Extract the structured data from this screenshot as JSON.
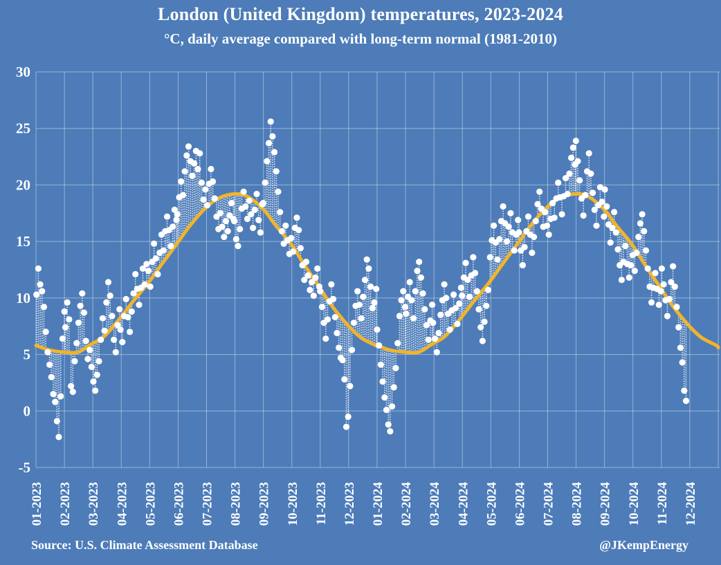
{
  "title": "London (United Kingdom) temperatures, 2023-2024",
  "subtitle": "°C, daily average compared with long-term normal (1981-2010)",
  "footer": {
    "source": "Source: U.S. Climate Assessment Database",
    "credit": "@JKempEnergy"
  },
  "colors": {
    "background": "#4d7cb8",
    "gridline": "#ffffff",
    "gridline_opacity": 0.42,
    "normal_line": "#f0b42c",
    "daily_dot": "#ffffff",
    "connector": "#ffffff",
    "text": "#ffffff"
  },
  "chart_data": {
    "type": "scatter",
    "title": "London (United Kingdom) temperatures, 2023-2024",
    "subtitle": "°C, daily average compared with long-term normal (1981-2010)",
    "xlabel": "",
    "ylabel": "°C",
    "ylim": [
      -5,
      30
    ],
    "yticks": [
      30,
      25,
      20,
      15,
      10,
      5,
      0,
      -5
    ],
    "grid": true,
    "legend": "none",
    "x_total_days": 731,
    "xticklabels": [
      "01-2023",
      "02-2023",
      "03-2023",
      "04-2023",
      "05-2023",
      "06-2023",
      "07-2023",
      "08-2023",
      "09-2023",
      "10-2023",
      "11-2023",
      "12-2023",
      "01-2024",
      "02-2024",
      "03-2024",
      "04-2024",
      "05-2024",
      "06-2024",
      "07-2024",
      "08-2024",
      "09-2024",
      "10-2024",
      "11-2024",
      "12-2024"
    ],
    "series": [
      {
        "name": "Daily average temperature",
        "marker": "white dot",
        "note": "each dot joined to normal curve by dotted line"
      },
      {
        "name": "Long-term normal 1981-2010",
        "style": "smooth yellow line"
      }
    ],
    "normal_anchors": {
      "doy": [
        1,
        15,
        32,
        46,
        60,
        74,
        91,
        105,
        121,
        135,
        152,
        166,
        182,
        196,
        213,
        227,
        244,
        258,
        274,
        288,
        305,
        319,
        335,
        349,
        365
      ],
      "value": [
        5.8,
        5.4,
        5.2,
        5.2,
        5.9,
        6.6,
        8.2,
        9.7,
        11.3,
        12.9,
        14.8,
        16.4,
        17.9,
        18.8,
        19.2,
        19.0,
        17.9,
        16.4,
        14.8,
        13.0,
        10.9,
        9.2,
        7.6,
        6.5,
        5.8
      ],
      "end_day": 731,
      "end_value": 5.6
    },
    "daily": {
      "note": "daily average temperatures sampled every 2 days, from 2023-01-01 to 2024-11-27",
      "months": [
        {
          "label": "01-2023",
          "start_day": 0,
          "step_days": 2,
          "temps": [
            10.3,
            12.6,
            11.2,
            10.6,
            9.2,
            7.0,
            5.2,
            4.1,
            3.0,
            1.5,
            0.8,
            -0.9,
            -2.3,
            1.3,
            6.4,
            8.8
          ]
        },
        {
          "label": "02-2023",
          "start_day": 31,
          "step_days": 2,
          "temps": [
            7.4,
            9.6,
            8.1,
            2.2,
            1.7,
            4.4,
            6.0,
            7.8,
            9.3,
            10.4,
            8.7,
            6.2,
            4.6,
            5.4
          ]
        },
        {
          "label": "03-2023",
          "start_day": 59,
          "step_days": 2,
          "temps": [
            3.9,
            2.6,
            1.8,
            3.2,
            4.4,
            6.3,
            8.2,
            7.1,
            9.6,
            11.4,
            10.2,
            8.4,
            6.3,
            5.2,
            7.6,
            9.0
          ]
        },
        {
          "label": "04-2023",
          "start_day": 90,
          "step_days": 2,
          "temps": [
            7.2,
            6.1,
            8.4,
            9.9,
            8.3,
            7.0,
            8.8,
            10.4,
            12.1,
            10.8,
            9.4,
            10.9,
            12.6,
            11.2,
            13.0
          ]
        },
        {
          "label": "05-2023",
          "start_day": 120,
          "step_days": 2,
          "temps": [
            12.4,
            11.0,
            13.2,
            14.8,
            13.5,
            12.1,
            14.0,
            15.6,
            14.2,
            15.9,
            17.2,
            16.0,
            14.6,
            16.3,
            17.8,
            16.9
          ]
        },
        {
          "label": "06-2023",
          "start_day": 151,
          "step_days": 2,
          "temps": [
            17.4,
            18.9,
            20.3,
            19.1,
            21.2,
            22.6,
            23.4,
            22.1,
            20.8,
            21.9,
            23.0,
            21.4,
            22.8,
            20.2,
            18.7
          ]
        },
        {
          "label": "07-2023",
          "start_day": 181,
          "step_days": 2,
          "temps": [
            19.6,
            18.2,
            20.1,
            21.4,
            20.3,
            18.8,
            17.2,
            16.1,
            17.5,
            16.3,
            15.4,
            16.8,
            15.9,
            17.3,
            18.4,
            17.0
          ]
        },
        {
          "label": "08-2023",
          "start_day": 212,
          "step_days": 2,
          "temps": [
            16.8,
            15.2,
            14.6,
            16.1,
            17.9,
            19.4,
            18.1,
            17.0,
            18.6,
            17.4,
            16.2,
            17.8,
            19.2,
            16.9,
            15.8,
            18.3
          ]
        },
        {
          "label": "09-2023",
          "start_day": 243,
          "step_days": 2,
          "temps": [
            18.4,
            20.2,
            22.1,
            23.7,
            25.6,
            24.3,
            22.9,
            21.2,
            19.4,
            17.6,
            15.9,
            14.8,
            16.4,
            15.1,
            13.9
          ]
        },
        {
          "label": "10-2023",
          "start_day": 273,
          "step_days": 2,
          "temps": [
            15.3,
            14.1,
            16.2,
            17.1,
            16.0,
            14.4,
            12.9,
            11.6,
            13.2,
            12.0,
            10.7,
            11.4,
            10.2,
            11.8,
            12.6,
            11.0
          ]
        },
        {
          "label": "11-2023",
          "start_day": 304,
          "step_days": 2,
          "temps": [
            10.6,
            9.2,
            7.8,
            6.4,
            8.1,
            9.7,
            11.2,
            9.9,
            8.3,
            6.9,
            5.6,
            4.7,
            4.5,
            2.8,
            -1.4
          ]
        },
        {
          "label": "12-2023",
          "start_day": 334,
          "step_days": 2,
          "temps": [
            -0.5,
            2.2,
            5.4,
            7.8,
            9.3,
            10.6,
            9.4,
            8.2,
            10.1,
            11.6,
            13.4,
            12.6,
            11.0,
            9.1,
            9.6,
            10.8
          ]
        },
        {
          "label": "01-2024",
          "start_day": 365,
          "step_days": 2,
          "temps": [
            7.2,
            5.8,
            4.1,
            2.6,
            1.2,
            0.1,
            -1.2,
            -1.8,
            0.4,
            2.1,
            3.8,
            6.0,
            8.4,
            9.8,
            10.6,
            9.2
          ]
        },
        {
          "label": "02-2024",
          "start_day": 396,
          "step_days": 2,
          "temps": [
            8.6,
            10.1,
            11.4,
            9.8,
            8.2,
            10.6,
            12.4,
            13.2,
            11.8,
            10.4,
            9.0,
            7.6,
            6.3,
            8.0,
            9.4
          ]
        },
        {
          "label": "03-2024",
          "start_day": 425,
          "step_days": 2,
          "temps": [
            7.8,
            6.4,
            5.2,
            6.9,
            8.5,
            9.8,
            11.2,
            10.0,
            8.6,
            7.2,
            8.9,
            10.3,
            9.1,
            7.7,
            9.5,
            10.9
          ]
        },
        {
          "label": "04-2024",
          "start_day": 456,
          "step_days": 2,
          "temps": [
            10.2,
            11.8,
            13.1,
            11.6,
            10.1,
            12.0,
            13.6,
            12.2,
            10.6,
            9.0,
            7.4,
            6.2,
            7.9,
            9.3,
            10.7
          ]
        },
        {
          "label": "05-2024",
          "start_day": 486,
          "step_days": 2,
          "temps": [
            13.6,
            15.1,
            16.4,
            14.9,
            13.4,
            15.2,
            16.8,
            18.1,
            16.6,
            15.0,
            16.3,
            17.5,
            15.8,
            14.2,
            15.6,
            16.9
          ]
        },
        {
          "label": "06-2024",
          "start_day": 517,
          "step_days": 2,
          "temps": [
            15.8,
            14.2,
            12.9,
            14.5,
            15.9,
            17.2,
            15.6,
            14.0,
            15.4,
            16.8,
            18.3,
            19.4,
            17.9,
            16.3,
            17.6
          ]
        },
        {
          "label": "07-2024",
          "start_day": 547,
          "step_days": 2,
          "temps": [
            16.4,
            15.6,
            17.0,
            18.4,
            17.1,
            18.8,
            20.2,
            18.9,
            17.4,
            19.0,
            20.6,
            19.2,
            21.0,
            22.4,
            23.3,
            21.8
          ]
        },
        {
          "label": "08-2024",
          "start_day": 578,
          "step_days": 2,
          "temps": [
            23.9,
            22.1,
            20.4,
            18.8,
            17.3,
            19.1,
            21.2,
            22.8,
            21.0,
            19.3,
            17.8,
            16.4,
            18.2,
            19.8,
            18.5,
            17.2
          ]
        },
        {
          "label": "09-2024",
          "start_day": 609,
          "step_days": 2,
          "temps": [
            19.6,
            18.1,
            16.5,
            14.9,
            16.2,
            17.6,
            15.8,
            14.3,
            12.9,
            11.6,
            13.2,
            14.6,
            13.0,
            11.8,
            12.9
          ]
        },
        {
          "label": "10-2024",
          "start_day": 639,
          "step_days": 2,
          "temps": [
            13.8,
            12.4,
            14.0,
            15.4,
            16.6,
            17.4,
            15.9,
            14.2,
            12.6,
            11.0,
            9.6,
            10.9,
            12.2,
            10.8,
            9.4,
            10.6
          ]
        },
        {
          "label": "11-2024",
          "start_day": 670,
          "step_days": 2,
          "temps": [
            12.6,
            11.2,
            9.8,
            8.4,
            9.9,
            11.4,
            12.8,
            11.0,
            9.2,
            7.4,
            5.6,
            4.3,
            1.8,
            0.9
          ]
        }
      ]
    }
  }
}
